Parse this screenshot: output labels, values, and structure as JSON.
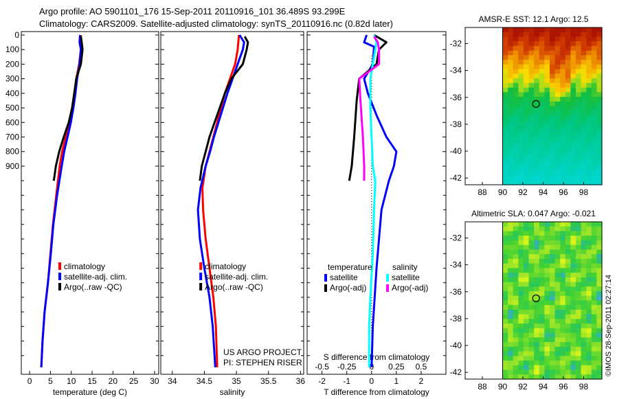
{
  "header": {
    "line1": "Argo profile: AO 5901101_176 15-Sep-2011 20110916_101 36.489S 93.299E",
    "line2": "Climatology: CARS2009. Satellite-adjusted climatology: synTS_20110916.nc (0.82d later)"
  },
  "credit": {
    "project": "US ARGO PROJECT",
    "pi": "PI: STEPHEN RISER",
    "stamp": "©IMOS 28-Sep-2011 02:27:14"
  },
  "colors": {
    "climatology": "#ff0000",
    "satellite": "#0000ff",
    "argo": "#000000",
    "salinity_sat": "#00ffff",
    "salinity_argo": "#ff00ff"
  },
  "chart_data": [
    {
      "id": "temp",
      "type": "line",
      "xlabel": "temperature (deg C)",
      "ylabel": "",
      "xlim": [
        -2,
        31
      ],
      "ylim": [
        0,
        2300
      ],
      "xticks": [
        0,
        5,
        10,
        15,
        20,
        25,
        30
      ],
      "yticks": [
        0,
        100,
        200,
        300,
        400,
        500,
        600,
        700,
        800,
        900
      ],
      "legend_position": "lower-right",
      "legend": [
        "climatology",
        "satellite-adj. clim.",
        "Argo(..raw -QC)"
      ],
      "series": [
        {
          "name": "climatology",
          "color": "#ff0000",
          "points": [
            [
              12.3,
              0
            ],
            [
              12.3,
              100
            ],
            [
              11.9,
              200
            ],
            [
              11.2,
              300
            ],
            [
              10.8,
              400
            ],
            [
              10.3,
              500
            ],
            [
              9.6,
              600
            ],
            [
              8.7,
              700
            ],
            [
              7.8,
              800
            ],
            [
              7.2,
              900
            ],
            [
              6.4,
              1100
            ],
            [
              5.6,
              1300
            ],
            [
              5.0,
              1500
            ],
            [
              4.4,
              1700
            ],
            [
              3.6,
              1900
            ],
            [
              3.1,
              2100
            ],
            [
              2.8,
              2280
            ]
          ]
        },
        {
          "name": "satellite-adj. clim.",
          "color": "#0000ff",
          "points": [
            [
              12.1,
              0
            ],
            [
              12.0,
              50
            ],
            [
              12.3,
              100
            ],
            [
              12.0,
              200
            ],
            [
              11.4,
              300
            ],
            [
              11.0,
              400
            ],
            [
              10.5,
              500
            ],
            [
              9.9,
              600
            ],
            [
              9.1,
              700
            ],
            [
              8.3,
              800
            ],
            [
              7.7,
              900
            ],
            [
              6.6,
              1100
            ],
            [
              5.7,
              1300
            ],
            [
              5.1,
              1500
            ],
            [
              4.4,
              1700
            ],
            [
              3.6,
              1900
            ],
            [
              3.1,
              2100
            ],
            [
              2.8,
              2280
            ]
          ]
        },
        {
          "name": "Argo(..raw -QC)",
          "color": "#000000",
          "points": [
            [
              12.3,
              10
            ],
            [
              12.5,
              50
            ],
            [
              12.7,
              100
            ],
            [
              12.3,
              200
            ],
            [
              11.2,
              300
            ],
            [
              10.7,
              400
            ],
            [
              10.2,
              500
            ],
            [
              9.4,
              600
            ],
            [
              8.2,
              700
            ],
            [
              7.1,
              800
            ],
            [
              6.3,
              900
            ],
            [
              5.8,
              1000
            ]
          ]
        }
      ]
    },
    {
      "id": "sal",
      "type": "line",
      "xlabel": "salinity",
      "ylabel": "",
      "xlim": [
        33.82,
        36.05
      ],
      "ylim": [
        0,
        2300
      ],
      "xticks": [
        34,
        34.5,
        35,
        35.5,
        36
      ],
      "yticks": [
        0,
        100,
        200,
        300,
        400,
        500,
        600,
        700,
        800,
        900
      ],
      "legend_position": "lower-right",
      "legend": [
        "climatology",
        "satellite-adj. clim.",
        "Argo(..raw -QC)"
      ],
      "series": [
        {
          "name": "climatology",
          "color": "#ff0000",
          "points": [
            [
              35.04,
              0
            ],
            [
              35.02,
              100
            ],
            [
              34.98,
              200
            ],
            [
              34.9,
              300
            ],
            [
              34.82,
              400
            ],
            [
              34.76,
              500
            ],
            [
              34.7,
              600
            ],
            [
              34.64,
              700
            ],
            [
              34.58,
              800
            ],
            [
              34.52,
              900
            ],
            [
              34.47,
              1050
            ],
            [
              34.48,
              1200
            ],
            [
              34.52,
              1400
            ],
            [
              34.58,
              1600
            ],
            [
              34.64,
              1800
            ],
            [
              34.68,
              2000
            ],
            [
              34.7,
              2280
            ]
          ]
        },
        {
          "name": "satellite-adj. clim.",
          "color": "#0000ff",
          "points": [
            [
              35.05,
              0
            ],
            [
              35.12,
              50
            ],
            [
              35.1,
              100
            ],
            [
              35.02,
              200
            ],
            [
              34.94,
              300
            ],
            [
              34.86,
              400
            ],
            [
              34.79,
              500
            ],
            [
              34.72,
              600
            ],
            [
              34.65,
              700
            ],
            [
              34.59,
              800
            ],
            [
              34.52,
              900
            ],
            [
              34.44,
              1050
            ],
            [
              34.4,
              1200
            ],
            [
              34.43,
              1400
            ],
            [
              34.5,
              1600
            ],
            [
              34.58,
              1800
            ],
            [
              34.63,
              2000
            ],
            [
              34.67,
              2280
            ]
          ]
        },
        {
          "name": "Argo(..raw -QC)",
          "color": "#000000",
          "points": [
            [
              35.13,
              10
            ],
            [
              35.18,
              50
            ],
            [
              35.16,
              100
            ],
            [
              35.1,
              200
            ],
            [
              34.92,
              300
            ],
            [
              34.82,
              400
            ],
            [
              34.74,
              500
            ],
            [
              34.66,
              600
            ],
            [
              34.58,
              700
            ],
            [
              34.52,
              800
            ],
            [
              34.46,
              900
            ],
            [
              34.43,
              1000
            ]
          ]
        }
      ]
    },
    {
      "id": "diff",
      "type": "line",
      "xlabel": "T difference from climatology",
      "top_xlabel": "S difference from climatology",
      "ylabel": "",
      "xlim": [
        -2.6,
        3.0
      ],
      "ylim": [
        0,
        2300
      ],
      "xticks": [
        -2,
        -1,
        0,
        1,
        2
      ],
      "top_xticks": [
        "-0.5",
        "-0.25",
        "0",
        "0.25",
        "0.5"
      ],
      "yticks": [
        0,
        100,
        200,
        300,
        400,
        500,
        600,
        700,
        800,
        900
      ],
      "legend_position": "lower-center",
      "legend_groups": [
        {
          "title": "temperature",
          "items": [
            "satellite",
            "Argo(-adj)"
          ]
        },
        {
          "title": "salinity",
          "items": [
            "satellite",
            "Argo(-adj)"
          ]
        }
      ],
      "series": [
        {
          "name": "T satellite",
          "color": "#0000ff",
          "points": [
            [
              -0.2,
              0
            ],
            [
              -0.3,
              50
            ],
            [
              0.1,
              80
            ],
            [
              0.05,
              200
            ],
            [
              -0.3,
              300
            ],
            [
              -0.15,
              400
            ],
            [
              0.2,
              550
            ],
            [
              0.6,
              700
            ],
            [
              1.0,
              800
            ],
            [
              0.9,
              900
            ],
            [
              0.7,
              1000
            ],
            [
              0.4,
              1200
            ],
            [
              0.2,
              1600
            ],
            [
              0.05,
              2000
            ],
            [
              0.0,
              2280
            ]
          ]
        },
        {
          "name": "T Argo(-adj)",
          "color": "#000000",
          "points": [
            [
              0.1,
              0
            ],
            [
              0.6,
              50
            ],
            [
              0.3,
              100
            ],
            [
              0.2,
              200
            ],
            [
              -0.5,
              300
            ],
            [
              -0.6,
              450
            ],
            [
              -0.7,
              700
            ],
            [
              -0.8,
              900
            ],
            [
              -0.9,
              1000
            ]
          ]
        },
        {
          "name": "S satellite",
          "color": "#00ffff",
          "points": [
            [
              0.1,
              0
            ],
            [
              0.2,
              50
            ],
            [
              0.15,
              100
            ],
            [
              0.05,
              200
            ],
            [
              -0.05,
              300
            ],
            [
              -0.05,
              500
            ],
            [
              0.0,
              700
            ],
            [
              0.05,
              900
            ],
            [
              0.15,
              1000
            ],
            [
              0.1,
              1200
            ],
            [
              0.05,
              1500
            ],
            [
              -0.05,
              1800
            ],
            [
              -0.1,
              2000
            ],
            [
              -0.1,
              2280
            ]
          ]
        },
        {
          "name": "S Argo(-adj)",
          "color": "#ff00ff",
          "points": [
            [
              0.1,
              10
            ],
            [
              0.25,
              50
            ],
            [
              0.3,
              100
            ],
            [
              0.3,
              200
            ],
            [
              -0.5,
              300
            ],
            [
              -0.45,
              450
            ],
            [
              -0.35,
              700
            ],
            [
              -0.3,
              900
            ],
            [
              -0.3,
              1000
            ]
          ]
        }
      ]
    },
    {
      "id": "sst",
      "type": "heatmap",
      "title": "AMSR-E SST: 12.1 Argo: 12.5",
      "xlim": [
        86.3,
        99.8
      ],
      "ylim": [
        -42.5,
        -30.8
      ],
      "xticks": [
        88,
        90,
        92,
        94,
        96,
        98
      ],
      "yticks": [
        -32,
        -34,
        -36,
        -38,
        -40,
        -42
      ],
      "data_lon_start": 90,
      "marker": {
        "lon": 93.3,
        "lat": -36.49
      }
    },
    {
      "id": "sla",
      "type": "heatmap",
      "title": "Altimetric SLA: 0.047 Argo: -0.021",
      "xlim": [
        86.3,
        99.8
      ],
      "ylim": [
        -42.5,
        -30.8
      ],
      "xticks": [
        88,
        90,
        92,
        94,
        96,
        98
      ],
      "yticks": [
        -32,
        -34,
        -36,
        -38,
        -40,
        -42
      ],
      "data_lon_start": 90,
      "marker": {
        "lon": 93.3,
        "lat": -36.49
      }
    }
  ]
}
